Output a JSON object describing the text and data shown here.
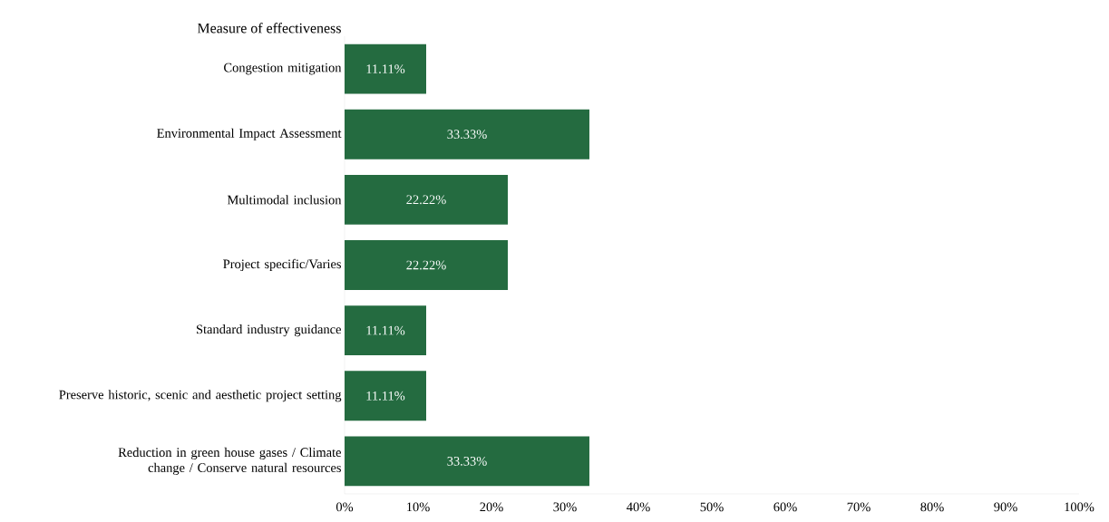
{
  "chart_data": {
    "type": "bar",
    "orientation": "horizontal",
    "ylabel": "Measure of effectiveness",
    "categories": [
      "Congestion mitigation",
      "Environmental Impact Assessment",
      "Multimodal inclusion",
      "Project specific/Varies",
      "Standard industry guidance",
      "Preserve historic, scenic and aesthetic project setting",
      "Reduction in green house gases / Climate change / Conserve natural resources"
    ],
    "values": [
      11.11,
      33.33,
      22.22,
      22.22,
      11.11,
      11.11,
      33.33
    ],
    "value_labels": [
      "11.11%",
      "33.33%",
      "22.22%",
      "22.22%",
      "11.11%",
      "11.11%",
      "33.33%"
    ],
    "color": "#246b40",
    "xlim": [
      0,
      100
    ],
    "xticks": [
      {
        "value": 0,
        "label": "0%"
      },
      {
        "value": 10,
        "label": "10%"
      },
      {
        "value": 20,
        "label": "20%"
      },
      {
        "value": 30,
        "label": "30%"
      },
      {
        "value": 40,
        "label": "40%"
      },
      {
        "value": 50,
        "label": "50%"
      },
      {
        "value": 60,
        "label": "60%"
      },
      {
        "value": 70,
        "label": "70%"
      },
      {
        "value": 80,
        "label": "80%"
      },
      {
        "value": 90,
        "label": "90%"
      },
      {
        "value": 100,
        "label": "100%"
      }
    ]
  }
}
